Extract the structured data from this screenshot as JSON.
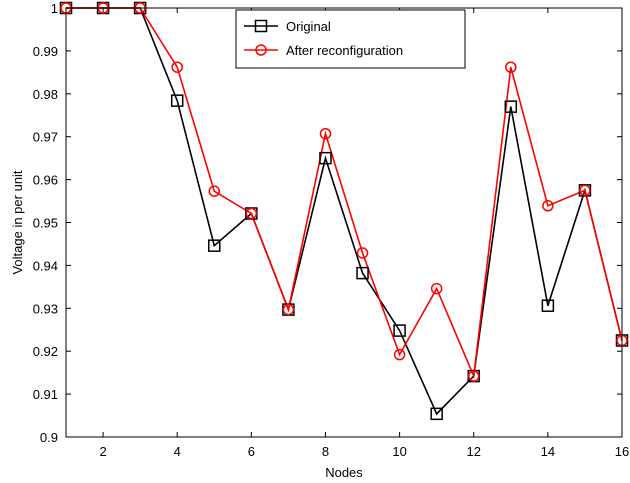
{
  "chart_data": {
    "type": "line",
    "xlabel": "Nodes",
    "ylabel": "Voltage in per unit",
    "xlim": [
      1,
      16
    ],
    "ylim": [
      0.9,
      1.0
    ],
    "x_ticks": [
      2,
      4,
      6,
      8,
      10,
      12,
      14,
      16
    ],
    "y_ticks": [
      0.9,
      0.91,
      0.92,
      0.93,
      0.94,
      0.95,
      0.96,
      0.97,
      0.98,
      0.99,
      1
    ],
    "grid": false,
    "legend_position": "top-center",
    "x": [
      1,
      2,
      3,
      4,
      5,
      6,
      7,
      8,
      9,
      10,
      11,
      12,
      13,
      14,
      15,
      16
    ],
    "series": [
      {
        "name": "Original",
        "color": "#000000",
        "marker": "square",
        "values": [
          1.0,
          1.0,
          1.0,
          0.9784,
          0.9446,
          0.9521,
          0.9297,
          0.965,
          0.9382,
          0.9248,
          0.9054,
          0.9142,
          0.977,
          0.9306,
          0.9575,
          0.9225
        ]
      },
      {
        "name": "After reconfiguration",
        "color": "#ff0000",
        "marker": "circle",
        "values": [
          1.0,
          1.0,
          1.0,
          0.9862,
          0.9573,
          0.9521,
          0.9297,
          0.9707,
          0.9429,
          0.9192,
          0.9346,
          0.9142,
          0.9862,
          0.9539,
          0.9575,
          0.9225
        ]
      }
    ]
  }
}
